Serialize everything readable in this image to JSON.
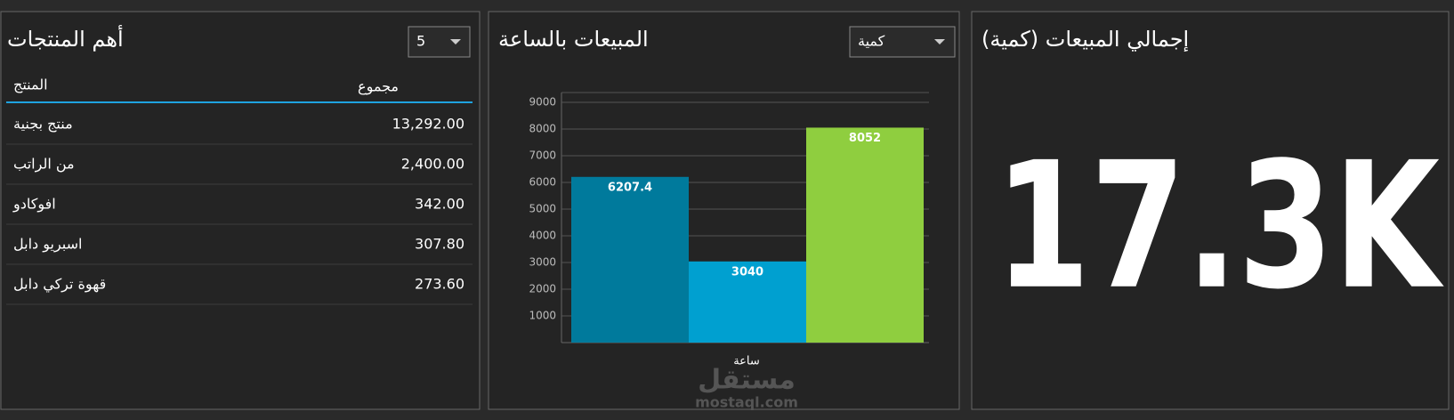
{
  "products": {
    "title": "أهم المنتجات",
    "dropdown": "5",
    "columns": [
      "المنتج",
      "مجموع"
    ],
    "rows": [
      [
        "منتج بجنية",
        "13,292.00"
      ],
      [
        "من الراتب",
        "2,400.00"
      ],
      [
        "افوكادو",
        "342.00"
      ],
      [
        "اسبريو دابل",
        "307.80"
      ],
      [
        "قهوة تركي دابل",
        "273.60"
      ]
    ]
  },
  "chart_data": {
    "type": "bar",
    "title": "المبيعات بالساعة",
    "dropdown": "كمية",
    "x_label": "ساعة",
    "categories": [
      null,
      null,
      null
    ],
    "values": [
      6207.4,
      3040,
      8052
    ],
    "colors": [
      "#007a9c",
      "#00a0d0",
      "#8fce3f"
    ],
    "ylim": [
      0,
      9000
    ],
    "yticks": [
      1000,
      2000,
      3000,
      4000,
      5000,
      6000,
      7000,
      8000,
      9000
    ],
    "grid": true
  },
  "kpi": {
    "title": "إجمالي المبيعات (كمية)",
    "value": "17.3K"
  },
  "watermark": {
    "brand": "مستقل",
    "site": "mostaql.com"
  }
}
